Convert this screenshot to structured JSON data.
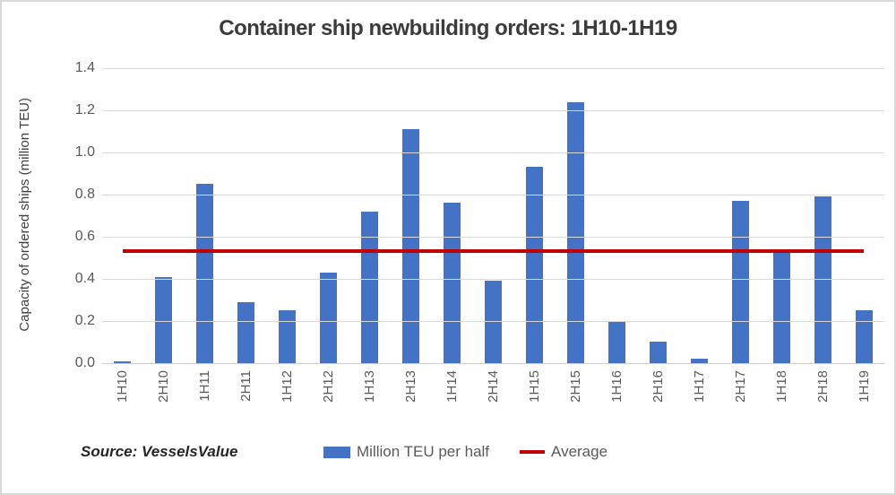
{
  "title": "Container ship newbuilding orders: 1H10-1H19",
  "chart_data": {
    "type": "bar",
    "title": "Container ship newbuilding orders: 1H10-1H19",
    "xlabel": "",
    "ylabel": "Capacity of ordered ships (million TEU)",
    "ylim": [
      0,
      1.4
    ],
    "ytick_interval": 0.2,
    "ytick_labels": [
      "1.4",
      "1.2",
      "1.0",
      "0.8",
      "0.6",
      "0.4",
      "0.2",
      "0.0"
    ],
    "grid": true,
    "legend_position": "bottom",
    "categories": [
      "1H10",
      "2H10",
      "1H11",
      "2H11",
      "1H12",
      "2H12",
      "1H13",
      "2H13",
      "1H14",
      "2H14",
      "1H15",
      "2H15",
      "1H16",
      "2H16",
      "1H17",
      "2H17",
      "1H18",
      "2H18",
      "1H19"
    ],
    "series": [
      {
        "name": "Million TEU per half",
        "type": "bar",
        "color": "#4472C4",
        "values": [
          0.01,
          0.41,
          0.85,
          0.29,
          0.25,
          0.43,
          0.72,
          1.11,
          0.76,
          0.39,
          0.93,
          1.24,
          0.2,
          0.1,
          0.02,
          0.77,
          0.54,
          0.79,
          0.25
        ]
      },
      {
        "name": "Average",
        "type": "line",
        "color": "#C00000",
        "values": [
          0.53
        ]
      }
    ]
  },
  "footer": {
    "source": "Source: VesselsValue",
    "legend": [
      {
        "label": "Million TEU per half",
        "swatch": "rect",
        "color": "#4472C4"
      },
      {
        "label": "Average",
        "swatch": "line",
        "color": "#C00000"
      }
    ]
  },
  "colors": {
    "bar": "#4472C4",
    "average_line": "#C00000",
    "gridline": "#D9D9D9",
    "axis_text": "#595959",
    "title_text": "#3B3B3B",
    "frame_border": "#D9D9D9",
    "background": "#FFFFFF"
  }
}
